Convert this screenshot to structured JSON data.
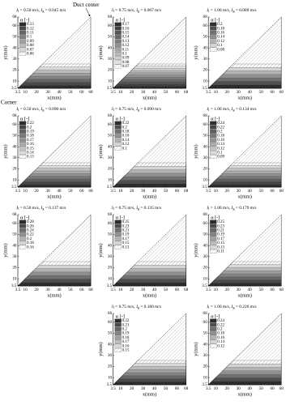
{
  "chart_data": [
    {
      "type": "contour",
      "title_parts": [
        "J",
        "l",
        " = 0.50 m/s, J",
        "g",
        " = 0.045 m/s"
      ],
      "legend_title": "α [-]",
      "levels": [
        0.13,
        0.12,
        0.11,
        0.1,
        0.09,
        0.08,
        0.07,
        0.06
      ],
      "xlabel": "x(mm)",
      "ylabel": "y(mm)",
      "xlim": [
        3.5,
        68
      ],
      "ylim": [
        3.5,
        68
      ],
      "xticks": [
        3.5,
        10,
        20,
        30,
        40,
        50,
        60,
        68
      ],
      "yticks": [
        3.5,
        10,
        20,
        30,
        40,
        50,
        60,
        68
      ],
      "annotations": [
        "Duct center",
        "Corner"
      ]
    },
    {
      "type": "contour",
      "title_parts": [
        "J",
        "l",
        " = 0.75 m/s, J",
        "g",
        " = 0.067 m/s"
      ],
      "legend_title": "α [-]",
      "levels": [
        0.17,
        0.16,
        0.15,
        0.14,
        0.13,
        0.12,
        0.11,
        0.1,
        0.09,
        0.08,
        0.07
      ],
      "xlabel": "x(mm)",
      "ylabel": "y(mm)",
      "xlim": [
        3.5,
        68
      ],
      "ylim": [
        3.5,
        68
      ],
      "xticks": [
        3.5,
        10,
        20,
        30,
        40,
        50,
        60,
        68
      ],
      "yticks": [
        3.5,
        10,
        20,
        30,
        40,
        50,
        60,
        68
      ]
    },
    {
      "type": "contour",
      "title_parts": [
        "J",
        "l",
        " = 1.00 m/s, J",
        "g",
        " = 0.089 m/s"
      ],
      "legend_title": "α [-]",
      "levels": [
        0.2,
        0.18,
        0.16,
        0.14,
        0.12,
        0.1,
        0.08
      ],
      "xlabel": "x(mm)",
      "ylabel": "y(mm)",
      "xlim": [
        3.5,
        68
      ],
      "ylim": [
        3.5,
        68
      ],
      "xticks": [
        3.5,
        10,
        20,
        30,
        40,
        50,
        60,
        68
      ],
      "yticks": [
        3.5,
        10,
        20,
        30,
        40,
        50,
        60,
        68
      ]
    },
    {
      "type": "contour",
      "title_parts": [
        "J",
        "l",
        " = 0.50 m/s, J",
        "g",
        " = 0.090 m/s"
      ],
      "legend_title": "α [-]",
      "levels": [
        0.22,
        0.2,
        0.19,
        0.18,
        0.17,
        0.16,
        0.15,
        0.14,
        0.13
      ],
      "xlabel": "x(mm)",
      "ylabel": "y(mm)",
      "xlim": [
        3.5,
        68
      ],
      "ylim": [
        3.5,
        68
      ],
      "xticks": [
        3.5,
        10,
        20,
        30,
        40,
        50,
        60,
        68
      ],
      "yticks": [
        3.5,
        10,
        20,
        30,
        40,
        50,
        60,
        68
      ]
    },
    {
      "type": "contour",
      "title_parts": [
        "J",
        "l",
        " = 0.75 m/s, J",
        "g",
        " = 0.090 m/s"
      ],
      "legend_title": "α [-]",
      "levels": [
        0.22,
        0.2,
        0.18,
        0.16,
        0.14,
        0.12,
        0.1
      ],
      "xlabel": "x(mm)",
      "ylabel": "y(mm)",
      "xlim": [
        3.5,
        68
      ],
      "ylim": [
        3.5,
        68
      ],
      "xticks": [
        3.5,
        10,
        20,
        30,
        40,
        50,
        60,
        68
      ],
      "yticks": [
        3.5,
        10,
        20,
        30,
        40,
        50,
        60,
        68
      ]
    },
    {
      "type": "contour",
      "title_parts": [
        "J",
        "l",
        " = 1.00 m/s, J",
        "g",
        " = 0.134 m/s"
      ],
      "legend_title": "α [-]",
      "levels": [
        0.24,
        0.22,
        0.2,
        0.18,
        0.16,
        0.14,
        0.12,
        0.1,
        0.09
      ],
      "xlabel": "x(mm)",
      "ylabel": "y(mm)",
      "xlim": [
        3.5,
        68
      ],
      "ylim": [
        3.5,
        68
      ],
      "xticks": [
        3.5,
        10,
        20,
        30,
        40,
        50,
        60,
        68
      ],
      "yticks": [
        3.5,
        10,
        20,
        30,
        40,
        50,
        60,
        68
      ]
    },
    {
      "type": "contour",
      "title_parts": [
        "J",
        "l",
        " = 0.50 m/s, J",
        "g",
        " = 0.137 m/s"
      ],
      "legend_title": "α [-]",
      "levels": [
        0.28,
        0.26,
        0.24,
        0.22,
        0.2,
        0.18,
        0.16
      ],
      "xlabel": "x(mm)",
      "ylabel": "y(mm)",
      "xlim": [
        3.5,
        68
      ],
      "ylim": [
        3.5,
        68
      ],
      "xticks": [
        3.5,
        10,
        20,
        30,
        40,
        50,
        60,
        68
      ],
      "yticks": [
        3.5,
        10,
        20,
        30,
        40,
        50,
        60,
        68
      ]
    },
    {
      "type": "contour",
      "title_parts": [
        "J",
        "l",
        " = 0.75 m/s, J",
        "g",
        " = 0.135 m/s"
      ],
      "legend_title": "α [-]",
      "levels": [
        0.25,
        0.23,
        0.21,
        0.19,
        0.17,
        0.15,
        0.13
      ],
      "xlabel": "x(mm)",
      "ylabel": "y(mm)",
      "xlim": [
        3.5,
        68
      ],
      "ylim": [
        3.5,
        68
      ],
      "xticks": [
        3.5,
        10,
        20,
        30,
        40,
        50,
        60,
        68
      ],
      "yticks": [
        3.5,
        10,
        20,
        30,
        40,
        50,
        60,
        68
      ]
    },
    {
      "type": "contour",
      "title_parts": [
        "J",
        "l",
        " = 1.00 m/s, J",
        "g",
        " = 0.179 m/s"
      ],
      "legend_title": "α [-]",
      "levels": [
        0.25,
        0.23,
        0.21,
        0.19,
        0.17,
        0.15,
        0.13,
        0.11
      ],
      "xlabel": "x(mm)",
      "ylabel": "y(mm)",
      "xlim": [
        3.5,
        68
      ],
      "ylim": [
        3.5,
        68
      ],
      "xticks": [
        3.5,
        10,
        20,
        30,
        40,
        50,
        60,
        68
      ],
      "yticks": [
        3.5,
        10,
        20,
        30,
        40,
        50,
        60,
        68
      ]
    },
    {
      "type": "contour",
      "title_parts": [
        "J",
        "l",
        " = 0.75 m/s, J",
        "g",
        " = 0.180 m/s"
      ],
      "legend_title": "α [-]",
      "levels": [
        0.22,
        0.21,
        0.2,
        0.19,
        0.18,
        0.17,
        0.16,
        0.15
      ],
      "xlabel": "x(mm)",
      "ylabel": "y(mm)",
      "xlim": [
        3.5,
        68
      ],
      "ylim": [
        3.5,
        68
      ],
      "xticks": [
        3.5,
        10,
        20,
        30,
        40,
        50,
        60,
        68
      ],
      "yticks": [
        3.5,
        10,
        20,
        30,
        40,
        50,
        60,
        68
      ]
    },
    {
      "type": "contour",
      "title_parts": [
        "J",
        "l",
        " = 1.00 m/s, J",
        "g",
        " = 0.226 m/s"
      ],
      "legend_title": "α [-]",
      "levels": [
        0.24,
        0.22,
        0.2,
        0.18,
        0.16,
        0.14,
        0.12
      ],
      "xlabel": "x(mm)",
      "ylabel": "y(mm)",
      "xlim": [
        3.5,
        68
      ],
      "ylim": [
        3.5,
        68
      ],
      "xticks": [
        3.5,
        10,
        20,
        30,
        40,
        50,
        60,
        68
      ],
      "yticks": [
        3.5,
        10,
        20,
        30,
        40,
        50,
        60,
        68
      ]
    }
  ]
}
